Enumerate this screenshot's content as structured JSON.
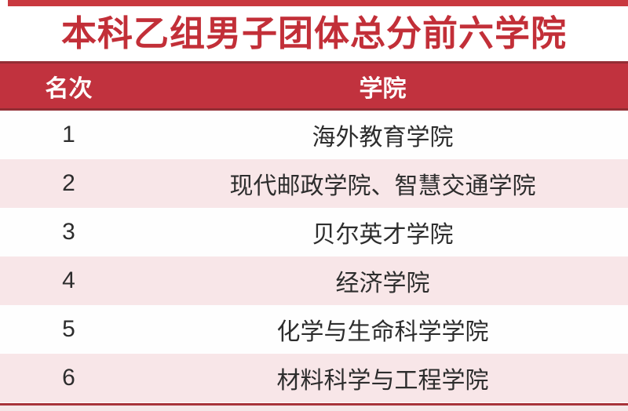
{
  "title": "本科乙组男子团体总分前六学院",
  "table": {
    "columns": {
      "rank_label": "名次",
      "college_label": "学院"
    },
    "rows": [
      {
        "rank": "1",
        "college": "海外教育学院"
      },
      {
        "rank": "2",
        "college": "现代邮政学院、智慧交通学院"
      },
      {
        "rank": "3",
        "college": "贝尔英才学院"
      },
      {
        "rank": "4",
        "college": "经济学院"
      },
      {
        "rank": "5",
        "college": "化学与生命科学学院"
      },
      {
        "rank": "6",
        "college": "材料科学与工程学院"
      }
    ]
  },
  "colors": {
    "accent-bright": "#c9393f",
    "title-red": "#c22f38",
    "header-red": "#c1323e",
    "header-border": "#932d34",
    "row-pink": "#f8e6e8",
    "bottom-line": "#a8333a",
    "footer-pink": "#f5e7e8",
    "text-dark": "#2d2d2d"
  }
}
